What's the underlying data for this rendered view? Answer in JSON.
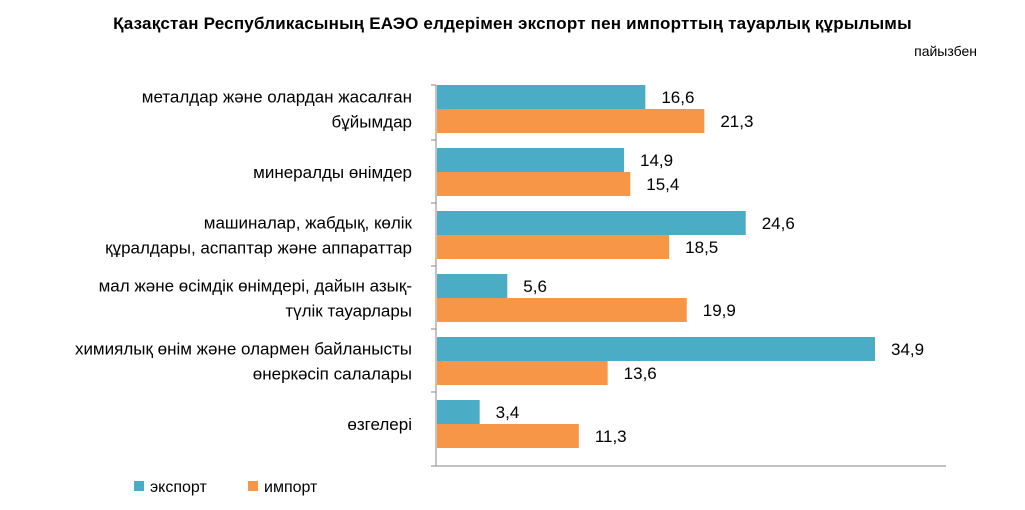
{
  "chart_data": {
    "type": "bar",
    "orientation": "horizontal",
    "title": "Қазақстан Республикасының  ЕАЭО елдерімен экспорт пен импорттың тауарлық  құрылымы",
    "subtitle": "пайызбен",
    "categories": [
      [
        "металдар және олардан жасалған",
        "бұйымдар"
      ],
      [
        "минералды өнімдер"
      ],
      [
        "машиналар, жабдық, көлік",
        "құралдары, аспаптар және аппараттар"
      ],
      [
        "мал және өсімдік өнімдері, дайын азық-",
        "түлік тауарлары"
      ],
      [
        "химиялық өнім және олармен байланысты",
        "өнеркәсіп салалары"
      ],
      [
        "өзгелері"
      ]
    ],
    "series": [
      {
        "name": "экспорт",
        "color": "#4BACC6",
        "values": [
          16.6,
          14.9,
          24.6,
          5.6,
          34.9,
          3.4
        ]
      },
      {
        "name": "импорт",
        "color": "#F79646",
        "values": [
          21.3,
          15.4,
          18.5,
          19.9,
          13.6,
          11.3
        ]
      }
    ],
    "value_labels": {
      "экспорт": [
        "16,6",
        "14,9",
        "24,6",
        "5,6",
        "34,9",
        "3,4"
      ],
      "импорт": [
        "21,3",
        "15,4",
        "18,5",
        "19,9",
        "13,6",
        "11,3"
      ]
    },
    "xlim": [
      0,
      40
    ],
    "grid": false,
    "legend_position": "bottom-left"
  }
}
